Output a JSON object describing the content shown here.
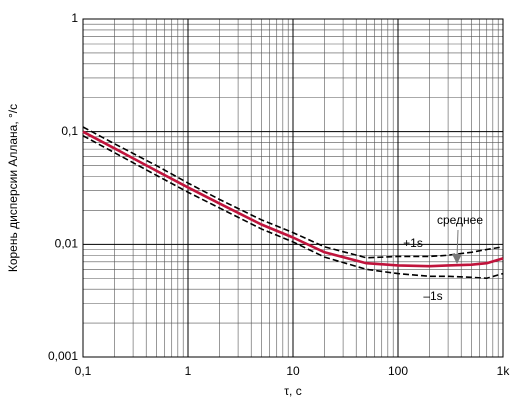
{
  "chart_data": {
    "type": "line",
    "x_label": "τ, с",
    "y_label": "Корень дисперсии Аллана, °/с",
    "x": [
      0.1,
      0.2,
      0.5,
      1,
      2,
      5,
      10,
      20,
      50,
      100,
      200,
      300,
      500,
      700,
      1000
    ],
    "series": [
      {
        "name": "среднее",
        "color": "#c0143c",
        "dash": false,
        "values": [
          0.1,
          0.071,
          0.045,
          0.032,
          0.023,
          0.015,
          0.0115,
          0.0085,
          0.0068,
          0.0065,
          0.0064,
          0.0065,
          0.0066,
          0.0068,
          0.0075
        ]
      },
      {
        "name": "+1s",
        "color": "#000000",
        "dash": true,
        "values": [
          0.11,
          0.078,
          0.05,
          0.035,
          0.025,
          0.0165,
          0.0127,
          0.0095,
          0.0076,
          0.0078,
          0.0078,
          0.008,
          0.0085,
          0.009,
          0.0095
        ]
      },
      {
        "name": "–1s",
        "color": "#000000",
        "dash": true,
        "values": [
          0.092,
          0.065,
          0.041,
          0.029,
          0.021,
          0.0137,
          0.0105,
          0.0077,
          0.006,
          0.0055,
          0.0052,
          0.0052,
          0.0051,
          0.005,
          0.0055
        ]
      }
    ],
    "xlim": [
      0.1,
      1000
    ],
    "ylim": [
      0.001,
      1
    ],
    "xlog": true,
    "ylog": true,
    "grid": true,
    "xticks": [
      {
        "value": 0.1,
        "label": "0,1"
      },
      1,
      10,
      100,
      {
        "value": 1000,
        "label": "1k"
      }
    ],
    "yticks": [
      {
        "value": 0.001,
        "label": "0,001"
      },
      {
        "value": 0.01,
        "label": "0,01"
      },
      {
        "value": 0.1,
        "label": "0,1"
      },
      1
    ],
    "xminorticks": [
      0.2,
      0.3,
      0.4,
      0.5,
      0.6,
      0.7,
      0.8,
      0.9,
      2,
      3,
      4,
      5,
      6,
      7,
      8,
      9,
      20,
      30,
      40,
      50,
      60,
      70,
      80,
      90,
      200,
      300,
      400,
      500,
      600,
      700,
      800,
      900
    ],
    "yminorticks": [
      0.002,
      0.003,
      0.004,
      0.005,
      0.006,
      0.007,
      0.008,
      0.009,
      0.02,
      0.03,
      0.04,
      0.05,
      0.06,
      0.07,
      0.08,
      0.09,
      0.2,
      0.3,
      0.4,
      0.5,
      0.6,
      0.7,
      0.8,
      0.9
    ]
  }
}
